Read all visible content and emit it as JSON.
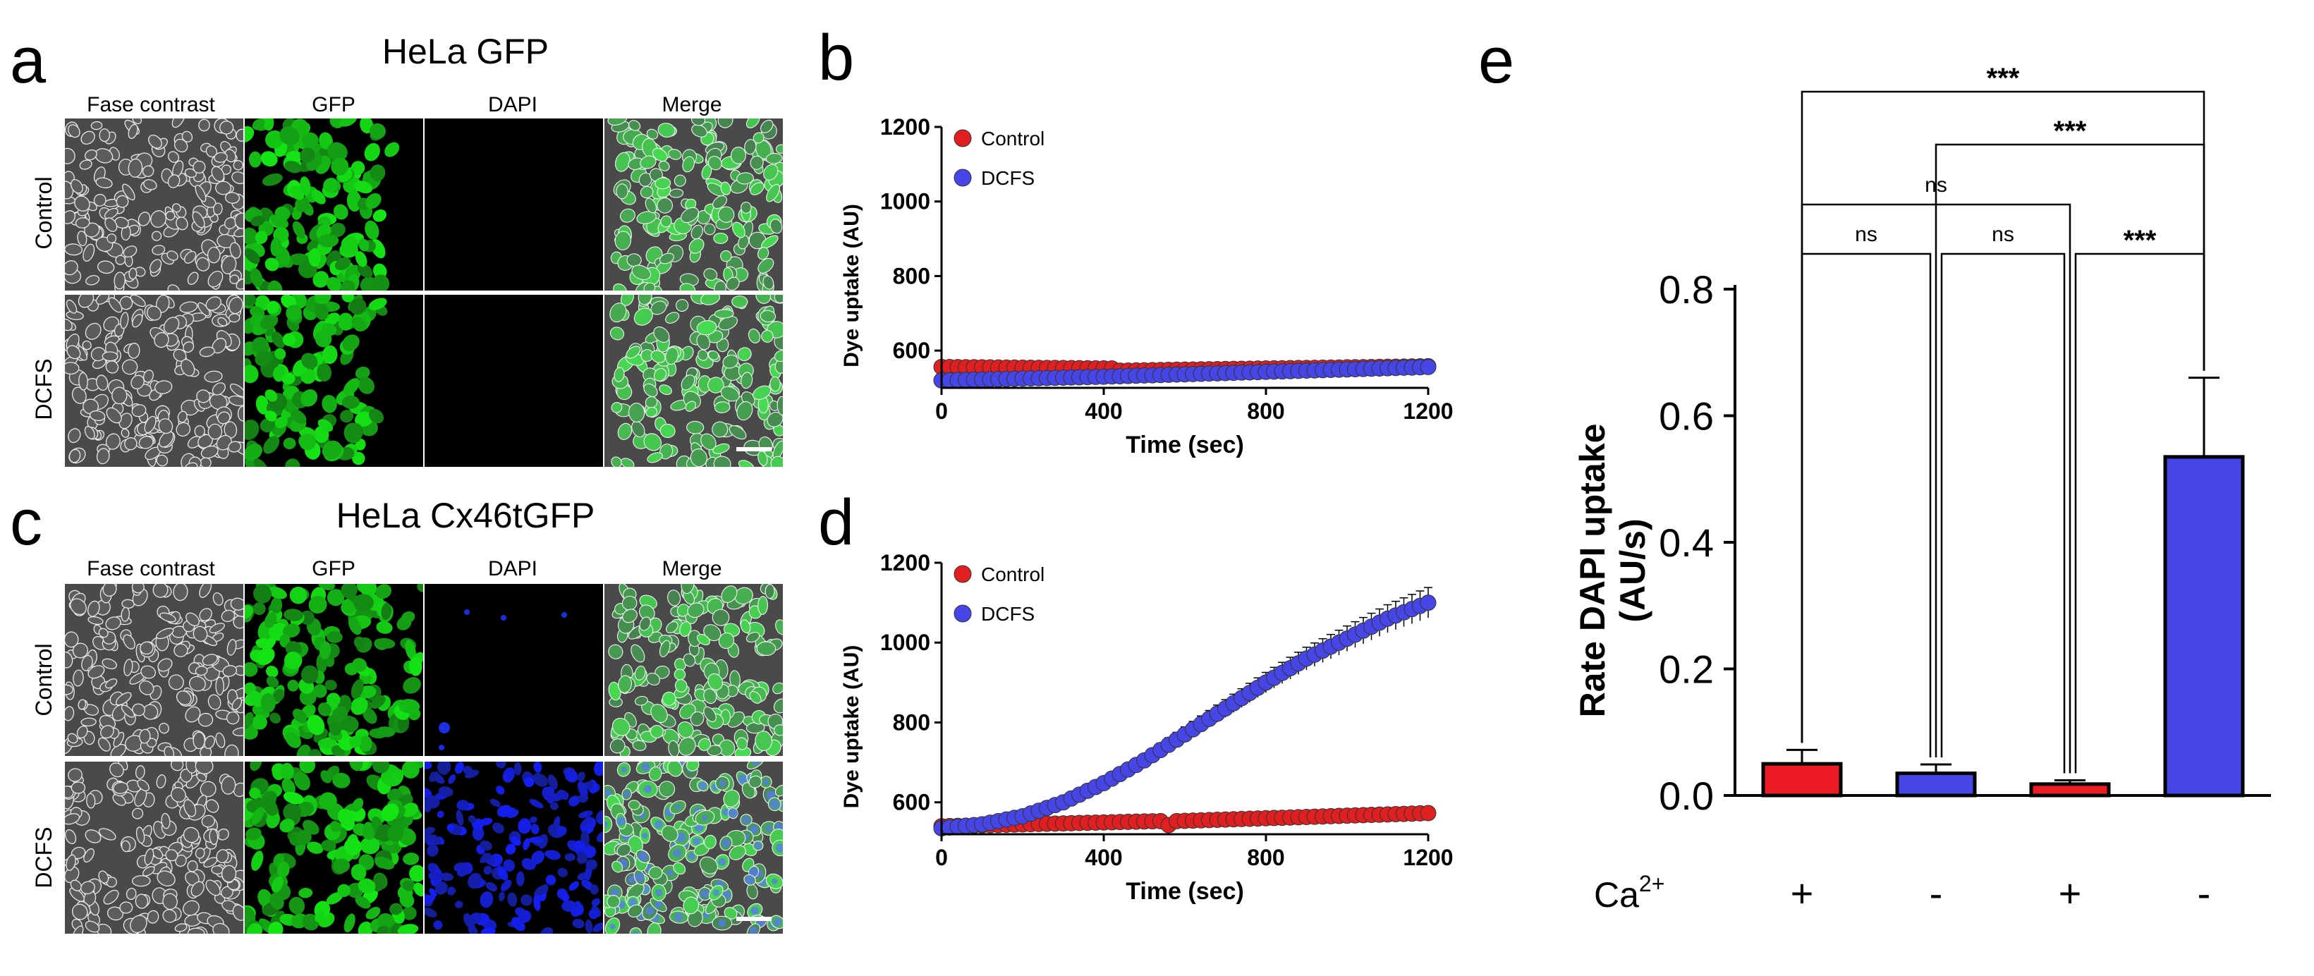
{
  "panel_letters": {
    "a": "a",
    "b": "b",
    "c": "c",
    "d": "d",
    "e": "e"
  },
  "panel_a": {
    "title": "HeLa GFP",
    "columns": [
      "Fase contrast",
      "GFP",
      "DAPI",
      "Merge"
    ],
    "rows": [
      "Control",
      "DCFS"
    ]
  },
  "panel_c": {
    "title": "HeLa Cx46tGFP",
    "columns": [
      "Fase contrast",
      "GFP",
      "DAPI",
      "Merge"
    ],
    "rows": [
      "Control",
      "DCFS"
    ]
  },
  "colors": {
    "control": "#e02020",
    "dcfs": "#4646e6",
    "gfp": "#1fb41f",
    "dapi": "#1c2ee0",
    "phase_bg": "#555555"
  },
  "chart_data": [
    {
      "panel": "b",
      "type": "scatter",
      "xlabel": "Time (sec)",
      "ylabel": "Dye uptake (AU)",
      "xlim": [
        0,
        1200
      ],
      "ylim": [
        500,
        1200
      ],
      "xticks": [
        0,
        400,
        800,
        1200
      ],
      "yticks": [
        600,
        800,
        1000,
        1200
      ],
      "legend_position": "top-left",
      "series": [
        {
          "name": "Control",
          "x_start": 0,
          "x_end": 1200,
          "x_step": 20,
          "y_points": [
            [
              0,
              556
            ],
            [
              420,
              552
            ],
            [
              440,
              546
            ],
            [
              600,
              549
            ],
            [
              1200,
              558
            ]
          ],
          "err": 0
        },
        {
          "name": "DCFS",
          "x_start": 0,
          "x_end": 1200,
          "x_step": 20,
          "y_points": [
            [
              0,
              520
            ],
            [
              400,
              530
            ],
            [
              800,
              543
            ],
            [
              1200,
              556
            ]
          ],
          "err": 0
        }
      ]
    },
    {
      "panel": "d",
      "type": "scatter",
      "xlabel": "Time (sec)",
      "ylabel": "Dye uptake (AU)",
      "xlim": [
        0,
        1200
      ],
      "ylim": [
        520,
        1200
      ],
      "xticks": [
        0,
        400,
        800,
        1200
      ],
      "yticks": [
        600,
        800,
        1000,
        1200
      ],
      "legend_position": "top-left",
      "series": [
        {
          "name": "Control",
          "x_start": 0,
          "x_end": 1200,
          "x_step": 20,
          "y_points": [
            [
              0,
              540
            ],
            [
              540,
              553
            ],
            [
              560,
              543
            ],
            [
              580,
              553
            ],
            [
              1200,
              573
            ]
          ],
          "err": 4
        },
        {
          "name": "DCFS",
          "x_start": 0,
          "x_end": 1200,
          "x_step": 20,
          "y_points": [
            [
              0,
              535
            ],
            [
              100,
              545
            ],
            [
              200,
              565
            ],
            [
              300,
              600
            ],
            [
              400,
              648
            ],
            [
              500,
              705
            ],
            [
              600,
              770
            ],
            [
              700,
              835
            ],
            [
              800,
              900
            ],
            [
              900,
              960
            ],
            [
              1000,
              1010
            ],
            [
              1100,
              1060
            ],
            [
              1200,
              1100
            ]
          ],
          "err": 38
        }
      ]
    },
    {
      "panel": "e",
      "type": "bar",
      "ylabel_lines": [
        "Rate DAPI uptake",
        "(AU/s)"
      ],
      "ylim": [
        0,
        0.8
      ],
      "yticks": [
        "0.0",
        "0.2",
        "0.4",
        "0.6",
        "0.8"
      ],
      "row_label": "Ca",
      "row_label_sup": "2+",
      "categories": [
        "+",
        "-",
        "+",
        "-"
      ],
      "values": [
        0.05,
        0.035,
        0.018,
        0.535
      ],
      "errors": [
        0.022,
        0.014,
        0.006,
        0.125
      ],
      "bar_colors": [
        "#ed1c24",
        "#4646e6",
        "#ed1c24",
        "#4646e6"
      ],
      "comparisons": [
        {
          "from": 0,
          "to": 3,
          "label": "***"
        },
        {
          "from": 1,
          "to": 3,
          "label": "***"
        },
        {
          "from": 0,
          "to": 2,
          "label": "ns"
        },
        {
          "from": 0,
          "to": 1,
          "label": "ns"
        },
        {
          "from": 1,
          "to": 2,
          "label": "ns"
        },
        {
          "from": 2,
          "to": 3,
          "label": "***"
        }
      ]
    }
  ]
}
